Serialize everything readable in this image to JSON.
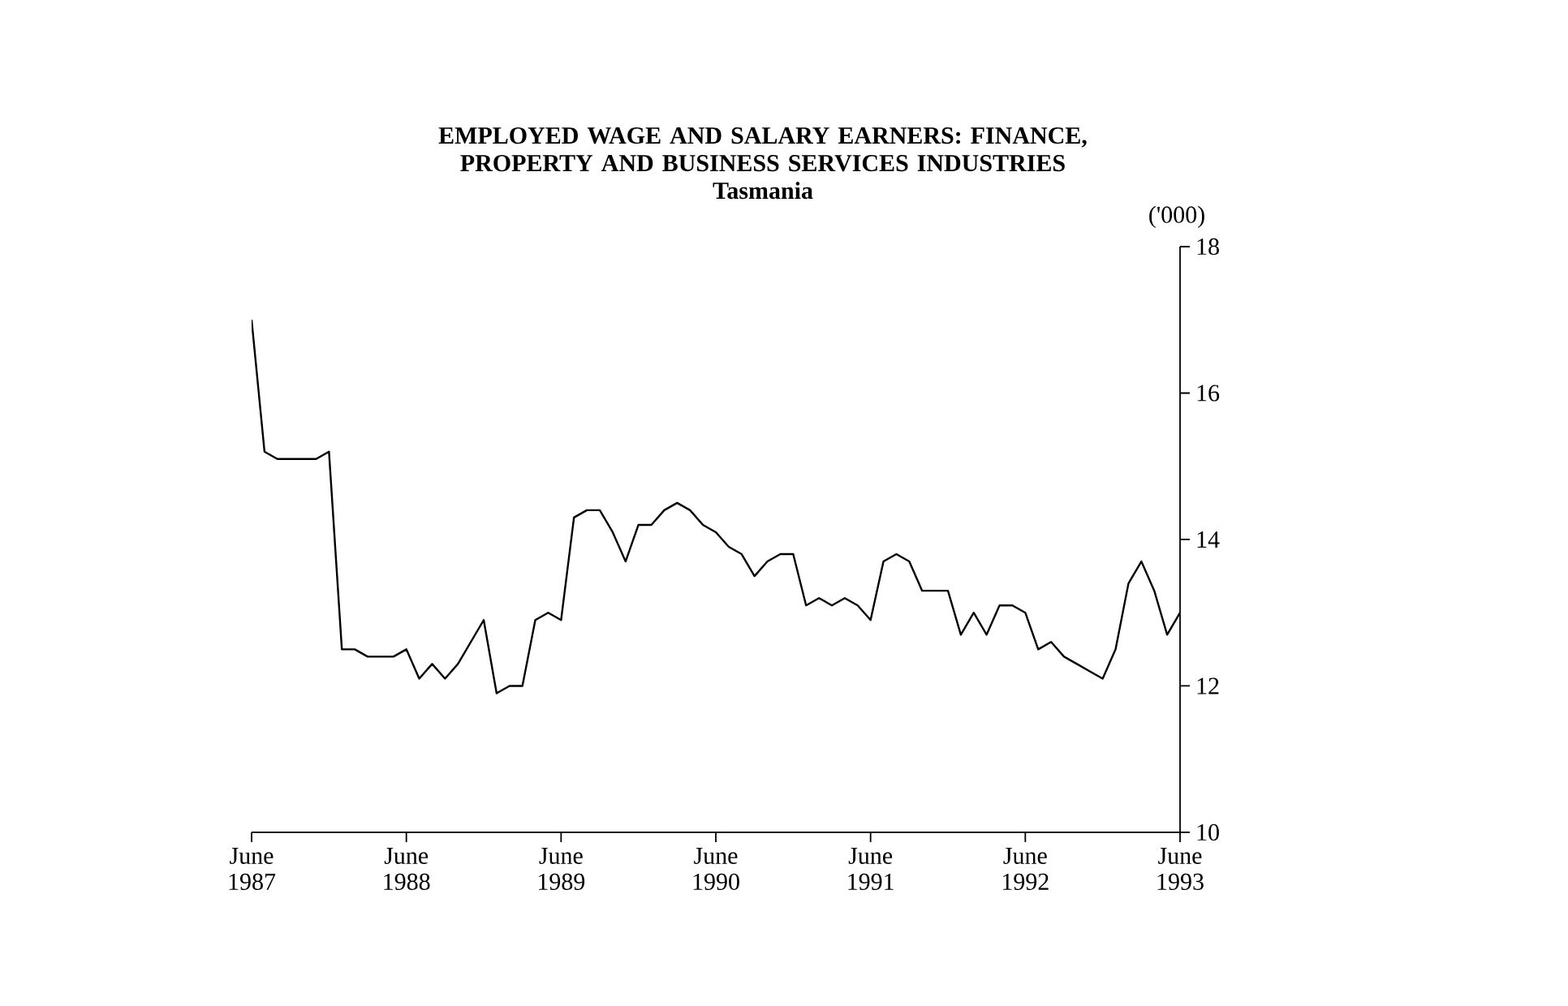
{
  "chart_data": {
    "type": "line",
    "title": "EMPLOYED WAGE AND SALARY EARNERS: FINANCE, PROPERTY AND BUSINESS SERVICES INDUSTRIES",
    "subtitle": "Tasmania",
    "ylabel": "('000)",
    "x": [
      "1987-06",
      "1987-07",
      "1987-08",
      "1987-09",
      "1987-10",
      "1987-11",
      "1987-12",
      "1988-01",
      "1988-02",
      "1988-03",
      "1988-04",
      "1988-05",
      "1988-06",
      "1988-07",
      "1988-08",
      "1988-09",
      "1988-10",
      "1988-11",
      "1988-12",
      "1989-01",
      "1989-02",
      "1989-03",
      "1989-04",
      "1989-05",
      "1989-06",
      "1989-07",
      "1989-08",
      "1989-09",
      "1989-10",
      "1989-11",
      "1989-12",
      "1990-01",
      "1990-02",
      "1990-03",
      "1990-04",
      "1990-05",
      "1990-06",
      "1990-07",
      "1990-08",
      "1990-09",
      "1990-10",
      "1990-11",
      "1990-12",
      "1991-01",
      "1991-02",
      "1991-03",
      "1991-04",
      "1991-05",
      "1991-06",
      "1991-07",
      "1991-08",
      "1991-09",
      "1991-10",
      "1991-11",
      "1991-12",
      "1992-01",
      "1992-02",
      "1992-03",
      "1992-04",
      "1992-05",
      "1992-06",
      "1992-07",
      "1992-08",
      "1992-09",
      "1992-10",
      "1992-11",
      "1992-12",
      "1993-01",
      "1993-02",
      "1993-03",
      "1993-04",
      "1993-05",
      "1993-06"
    ],
    "series": [
      {
        "color": "#000000",
        "values": [
          17.0,
          15.2,
          15.1,
          15.1,
          15.1,
          15.1,
          15.2,
          12.5,
          12.5,
          12.4,
          12.4,
          12.4,
          12.5,
          12.1,
          12.3,
          12.1,
          12.3,
          12.6,
          12.9,
          11.9,
          12.0,
          12.0,
          12.9,
          13.0,
          12.9,
          14.3,
          14.4,
          14.4,
          14.1,
          13.7,
          14.2,
          14.2,
          14.4,
          14.5,
          14.4,
          14.2,
          14.1,
          13.9,
          13.8,
          13.5,
          13.7,
          13.8,
          13.8,
          13.1,
          13.2,
          13.1,
          13.2,
          13.1,
          12.9,
          13.7,
          13.8,
          13.7,
          13.3,
          13.3,
          13.3,
          12.7,
          13.0,
          12.7,
          13.1,
          13.1,
          13.0,
          12.5,
          12.6,
          12.4,
          12.3,
          12.2,
          12.1,
          12.5,
          13.4,
          13.7,
          13.3,
          12.7,
          13.0
        ]
      }
    ],
    "xlim": [
      "1987-06",
      "1993-06"
    ],
    "xticks": [
      {
        "value": "1987-06",
        "label": "June 1987"
      },
      {
        "value": "1988-06",
        "label": "June 1988"
      },
      {
        "value": "1989-06",
        "label": "June 1989"
      },
      {
        "value": "1990-06",
        "label": "June 1990"
      },
      {
        "value": "1991-06",
        "label": "June 1991"
      },
      {
        "value": "1992-06",
        "label": "June 1992"
      },
      {
        "value": "1993-06",
        "label": "June 1993"
      }
    ],
    "ylim": [
      10,
      18
    ],
    "yticks": [
      10,
      12,
      14,
      16,
      18
    ],
    "grid": false,
    "marker": "none",
    "line_style": "solid"
  }
}
